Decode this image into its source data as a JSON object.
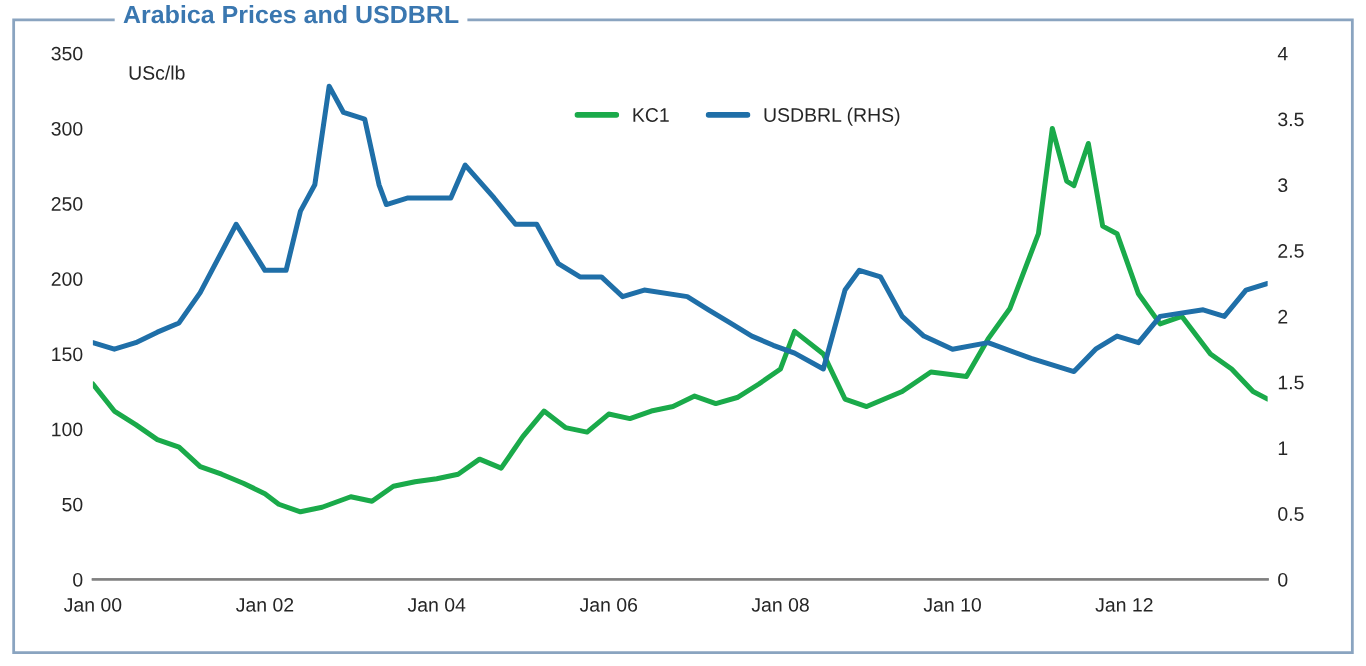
{
  "chart_data": {
    "type": "line",
    "title": "Arabica Prices and USDBRL",
    "annotations": [
      "USc/lb"
    ],
    "legend": "top",
    "xlim": [
      "2000-01",
      "2013-09"
    ],
    "xticks": [
      {
        "value": "2000-01",
        "label": "Jan 00"
      },
      {
        "value": "2002-01",
        "label": "Jan 02"
      },
      {
        "value": "2004-01",
        "label": "Jan 04"
      },
      {
        "value": "2006-01",
        "label": "Jan 06"
      },
      {
        "value": "2008-01",
        "label": "Jan 08"
      },
      {
        "value": "2010-01",
        "label": "Jan 10"
      },
      {
        "value": "2012-01",
        "label": "Jan 12"
      }
    ],
    "ylim": [
      0,
      350
    ],
    "yticks": [
      0,
      50,
      100,
      150,
      200,
      250,
      300,
      350
    ],
    "y2lim": [
      0,
      4
    ],
    "y2ticks": [
      0,
      0.5,
      1,
      1.5,
      2,
      2.5,
      3,
      3.5,
      4
    ],
    "series": [
      {
        "name": "KC1",
        "color": "#1aaa4a",
        "x": [
          "2000-01",
          "2000-04",
          "2000-07",
          "2000-10",
          "2001-01",
          "2001-04",
          "2001-07",
          "2001-10",
          "2002-01",
          "2002-03",
          "2002-06",
          "2002-09",
          "2003-01",
          "2003-04",
          "2003-07",
          "2003-10",
          "2004-01",
          "2004-04",
          "2004-07",
          "2004-10",
          "2005-01",
          "2005-04",
          "2005-07",
          "2005-10",
          "2006-01",
          "2006-04",
          "2006-07",
          "2006-10",
          "2007-01",
          "2007-04",
          "2007-07",
          "2007-10",
          "2008-01",
          "2008-03",
          "2008-07",
          "2008-10",
          "2009-01",
          "2009-06",
          "2009-10",
          "2010-03",
          "2010-06",
          "2010-09",
          "2011-01",
          "2011-03",
          "2011-05",
          "2011-06",
          "2011-08",
          "2011-10",
          "2011-12",
          "2012-03",
          "2012-06",
          "2012-09",
          "2013-01",
          "2013-04",
          "2013-07",
          "2013-09"
        ],
        "values": [
          130,
          112,
          103,
          93,
          88,
          75,
          70,
          64,
          57,
          50,
          45,
          48,
          55,
          52,
          62,
          65,
          67,
          70,
          80,
          74,
          95,
          112,
          101,
          98,
          110,
          107,
          112,
          115,
          122,
          117,
          121,
          130,
          140,
          165,
          150,
          120,
          115,
          125,
          138,
          135,
          160,
          180,
          230,
          300,
          265,
          262,
          290,
          235,
          230,
          190,
          170,
          175,
          150,
          140,
          125,
          120
        ]
      },
      {
        "name": "USDBRL (RHS)",
        "color": "#1f6fa8",
        "axis": "y2",
        "x": [
          "2000-01",
          "2000-04",
          "2000-07",
          "2000-10",
          "2001-01",
          "2001-04",
          "2001-09",
          "2002-01",
          "2002-04",
          "2002-06",
          "2002-08",
          "2002-10",
          "2002-12",
          "2003-03",
          "2003-05",
          "2003-06",
          "2003-09",
          "2003-12",
          "2004-03",
          "2004-05",
          "2004-09",
          "2004-12",
          "2005-03",
          "2005-06",
          "2005-09",
          "2005-12",
          "2006-03",
          "2006-06",
          "2006-12",
          "2007-03",
          "2007-06",
          "2007-09",
          "2007-12",
          "2008-03",
          "2008-07",
          "2008-10",
          "2008-12",
          "2009-03",
          "2009-06",
          "2009-09",
          "2010-01",
          "2010-06",
          "2010-12",
          "2011-06",
          "2011-09",
          "2011-12",
          "2012-03",
          "2012-06",
          "2012-12",
          "2013-03",
          "2013-06",
          "2013-09"
        ],
        "values": [
          1.8,
          1.75,
          1.8,
          1.88,
          1.95,
          2.18,
          2.7,
          2.35,
          2.35,
          2.8,
          3.0,
          3.75,
          3.55,
          3.5,
          3.0,
          2.85,
          2.9,
          2.9,
          2.9,
          3.15,
          2.9,
          2.7,
          2.7,
          2.4,
          2.3,
          2.3,
          2.15,
          2.2,
          2.15,
          2.05,
          1.95,
          1.85,
          1.78,
          1.72,
          1.6,
          2.2,
          2.35,
          2.3,
          2.0,
          1.85,
          1.75,
          1.8,
          1.68,
          1.58,
          1.75,
          1.85,
          1.8,
          2.0,
          2.05,
          2.0,
          2.2,
          2.25
        ]
      }
    ]
  }
}
